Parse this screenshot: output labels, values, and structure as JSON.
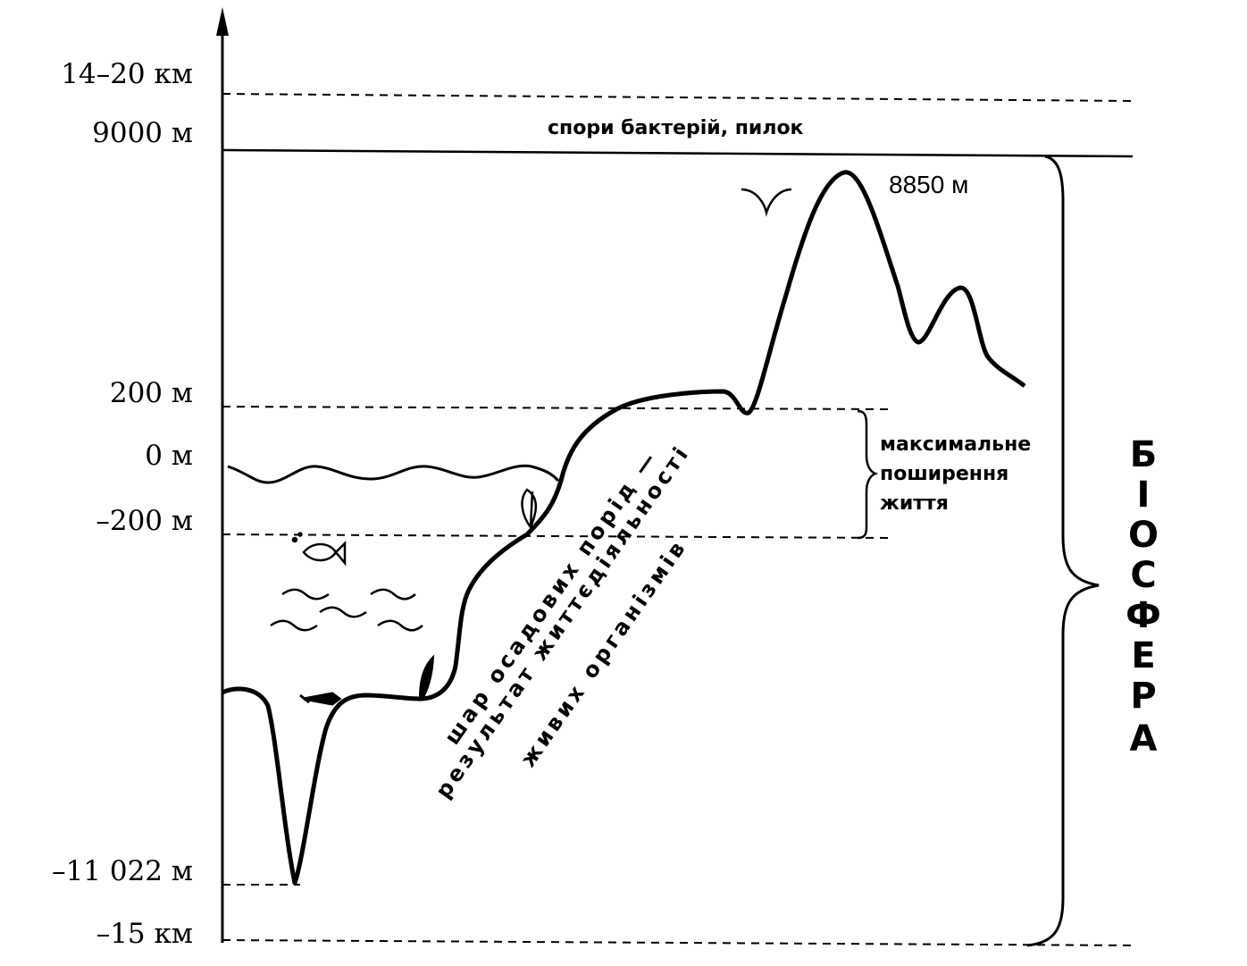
{
  "axis_labels": {
    "stratosphere": "14–20 км",
    "alt_9000": "9000 м",
    "alt_200": "200 м",
    "sea_level": "0 м",
    "depth_200": "–200 м",
    "depth_11022": "–11 022 м",
    "depth_15km": "–15 км"
  },
  "annotations": {
    "spores": "спори бактерій, пилок",
    "peak": "8850 м",
    "max_life_line1": "максимальне",
    "max_life_line2": "поширення",
    "max_life_line3": "життя",
    "sediment_line1": "шар осадових порід —",
    "sediment_line2": "результат життєдіяльності",
    "sediment_line3": "живих організмів"
  },
  "biosphere_letters": [
    "Б",
    "І",
    "О",
    "С",
    "Ф",
    "Е",
    "Р",
    "А"
  ]
}
